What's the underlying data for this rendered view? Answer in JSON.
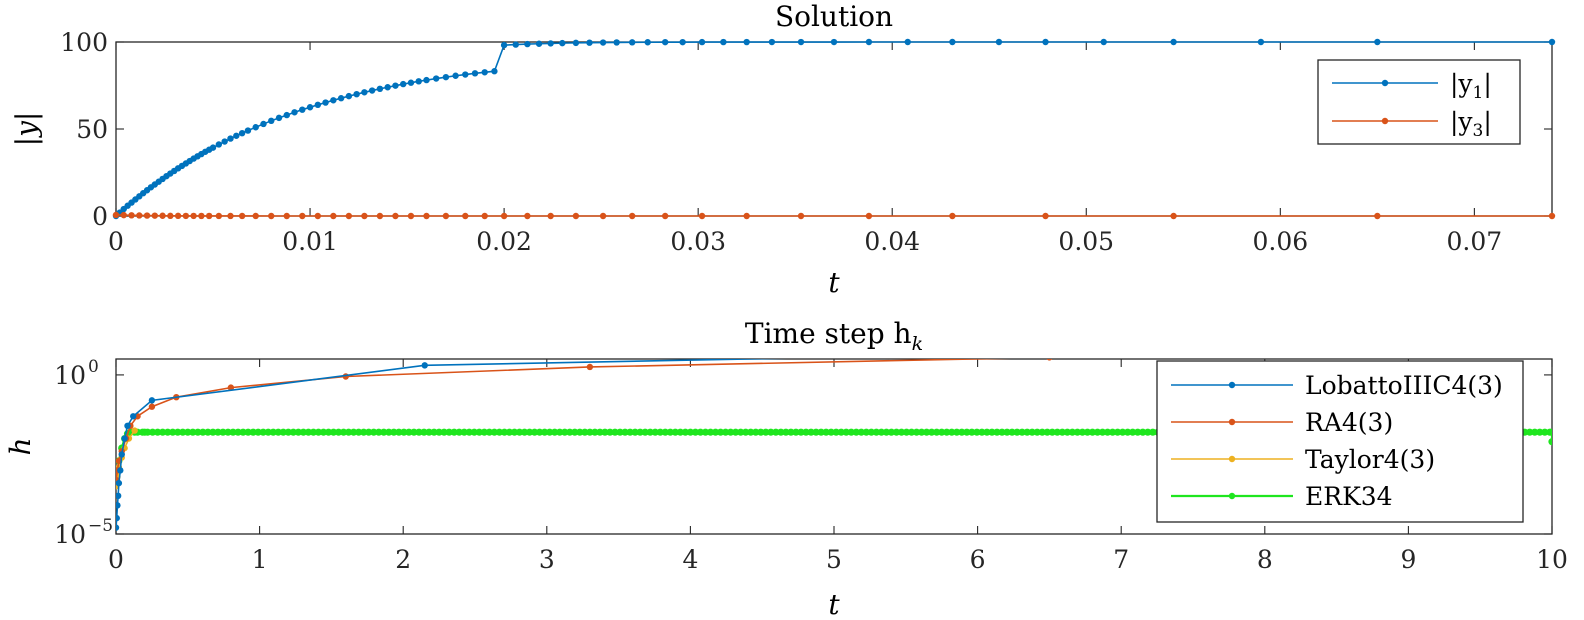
{
  "chart_data": [
    {
      "type": "line",
      "title": "Solution",
      "xlabel": "t",
      "ylabel": "|y|",
      "xlim": [
        0,
        0.074
      ],
      "ylim": [
        0,
        100
      ],
      "xticks": [
        0,
        0.01,
        0.02,
        0.03,
        0.04,
        0.05,
        0.06,
        0.07
      ],
      "xtick_labels": [
        "0",
        "0.01",
        "0.02",
        "0.03",
        "0.04",
        "0.05",
        "0.06",
        "0.07"
      ],
      "yticks": [
        0,
        50,
        100
      ],
      "ytick_labels": [
        "0",
        "50",
        "100"
      ],
      "grid": false,
      "legend_placement": "top-right",
      "series": [
        {
          "name": "|y1|",
          "label_main": "|y",
          "label_sub": "1",
          "color": "#0072BD",
          "x": [
            0,
            0.0002,
            0.0004,
            0.0006,
            0.0008,
            0.001,
            0.0012,
            0.0014,
            0.0016,
            0.0018,
            0.002,
            0.0022,
            0.0024,
            0.0026,
            0.0028,
            0.003,
            0.0032,
            0.0034,
            0.0036,
            0.0038,
            0.004,
            0.0042,
            0.0044,
            0.0046,
            0.0048,
            0.005,
            0.0053,
            0.0056,
            0.0059,
            0.0062,
            0.0065,
            0.0068,
            0.0072,
            0.0076,
            0.008,
            0.0084,
            0.0088,
            0.0092,
            0.0096,
            0.01,
            0.0104,
            0.0108,
            0.0112,
            0.0116,
            0.012,
            0.0124,
            0.0128,
            0.0132,
            0.0136,
            0.014,
            0.0144,
            0.0148,
            0.0152,
            0.0156,
            0.016,
            0.0165,
            0.017,
            0.0175,
            0.018,
            0.0185,
            0.019,
            0.0195,
            0.02,
            0.0206,
            0.0212,
            0.0218,
            0.0224,
            0.023,
            0.0237,
            0.0244,
            0.0251,
            0.0258,
            0.0266,
            0.0274,
            0.0283,
            0.0292,
            0.0302,
            0.0313,
            0.0325,
            0.0338,
            0.0353,
            0.037,
            0.0388,
            0.0408,
            0.0431,
            0.0455,
            0.0479,
            0.0509,
            0.0545,
            0.059,
            0.065,
            0.074
          ],
          "y": [
            0,
            2.0,
            4.0,
            5.9,
            7.7,
            9.5,
            11.3,
            13.1,
            14.8,
            16.5,
            18.1,
            19.7,
            21.3,
            22.9,
            24.4,
            25.9,
            27.4,
            28.8,
            30.2,
            31.6,
            33.0,
            34.3,
            35.6,
            36.9,
            38.1,
            39.3,
            41.1,
            42.8,
            44.5,
            46.1,
            47.6,
            49.1,
            51.0,
            52.9,
            54.7,
            56.4,
            58.0,
            59.6,
            61.1,
            62.5,
            63.9,
            65.2,
            66.5,
            67.7,
            68.9,
            70.0,
            71.1,
            72.1,
            73.1,
            74.0,
            74.9,
            75.8,
            76.6,
            77.4,
            78.1,
            79.0,
            79.8,
            80.6,
            81.3,
            82.0,
            82.6,
            83.2,
            98.2,
            98.5,
            98.8,
            99.0,
            99.2,
            99.35,
            99.5,
            99.6,
            99.7,
            99.75,
            99.8,
            99.85,
            99.9,
            99.92,
            99.95,
            99.96,
            99.97,
            99.98,
            99.99,
            99.99,
            100,
            100,
            100,
            100,
            100,
            100,
            100,
            100,
            100,
            100
          ]
        },
        {
          "name": "|y3|",
          "label_main": "|y",
          "label_sub": "3",
          "color": "#D95319",
          "x": [
            0,
            0.0004,
            0.0008,
            0.0012,
            0.0016,
            0.002,
            0.0024,
            0.0028,
            0.0032,
            0.0036,
            0.004,
            0.0044,
            0.0048,
            0.0053,
            0.0059,
            0.0065,
            0.0072,
            0.008,
            0.0088,
            0.0096,
            0.0104,
            0.0112,
            0.012,
            0.0128,
            0.0136,
            0.0144,
            0.0152,
            0.016,
            0.017,
            0.018,
            0.019,
            0.02,
            0.0212,
            0.0224,
            0.0237,
            0.0251,
            0.0266,
            0.0283,
            0.0302,
            0.0325,
            0.0353,
            0.0388,
            0.0431,
            0.0479,
            0.0545,
            0.065,
            0.074
          ],
          "y": [
            0.6,
            0.5,
            0.4,
            0.3,
            0.25,
            0.2,
            0.15,
            0.1,
            0.08,
            0.06,
            0.05,
            0.04,
            0.03,
            0.02,
            0.02,
            0.01,
            0.01,
            0,
            0,
            0,
            0,
            0,
            0,
            0,
            0,
            0,
            0,
            0,
            0,
            0,
            0,
            0,
            0,
            0,
            0,
            0,
            0,
            0,
            0,
            0,
            0,
            0,
            0,
            0,
            0,
            0,
            0
          ]
        }
      ]
    },
    {
      "type": "line",
      "title": "Time step h",
      "title_sub": "k",
      "xlabel": "t",
      "ylabel": "h",
      "xlim": [
        0,
        10
      ],
      "ylim_log10": [
        -5,
        0.5
      ],
      "yscale": "log",
      "xticks": [
        0,
        1,
        2,
        3,
        4,
        5,
        6,
        7,
        8,
        9,
        10
      ],
      "xtick_labels": [
        "0",
        "1",
        "2",
        "3",
        "4",
        "5",
        "6",
        "7",
        "8",
        "9",
        "10"
      ],
      "yticks_log10": [
        -5,
        0
      ],
      "ytick_labels": [
        {
          "base": "10",
          "exp": "−5"
        },
        {
          "base": "10",
          "exp": "0"
        }
      ],
      "grid": false,
      "legend_placement": "top-right",
      "series": [
        {
          "name": "LobattoIIIC4(3)",
          "color": "#0072BD",
          "x": [
            0,
            0.005,
            0.01,
            0.015,
            0.02,
            0.03,
            0.04,
            0.06,
            0.08,
            0.12,
            0.25,
            2.15,
            10
          ],
          "log10_y": [
            -4.8,
            -4.5,
            -4.1,
            -3.8,
            -3.4,
            -3.0,
            -2.5,
            -2.0,
            -1.6,
            -1.3,
            -0.8,
            0.3,
            1.0
          ]
        },
        {
          "name": "RA4(3)",
          "color": "#D95319",
          "x": [
            0,
            0.01,
            0.02,
            0.04,
            0.07,
            0.1,
            0.15,
            0.25,
            0.42,
            0.8,
            1.6,
            3.3,
            6.5,
            10
          ],
          "log10_y": [
            -3.3,
            -3.0,
            -2.7,
            -2.4,
            -2.0,
            -1.6,
            -1.3,
            -1.0,
            -0.7,
            -0.4,
            -0.05,
            0.25,
            0.55,
            0.6
          ]
        },
        {
          "name": "Taylor4(3)",
          "color": "#EDB120",
          "x": [
            0,
            0.01,
            0.02,
            0.04,
            0.06,
            0.09,
            0.13
          ],
          "log10_y": [
            -3.5,
            -3.2,
            -2.9,
            -2.6,
            -2.3,
            -2.0,
            -1.75
          ]
        },
        {
          "name": "ERK34",
          "color": "#1EE61E",
          "x": [
            0,
            0.01,
            0.02,
            0.04,
            0.06,
            0.08,
            0.1,
            0.13,
            0.2,
            10,
            10
          ],
          "log10_y": [
            -3.2,
            -3.0,
            -2.7,
            -2.3,
            -2.0,
            -1.85,
            -1.8,
            -1.8,
            -1.8,
            -1.8,
            -2.1
          ]
        }
      ]
    }
  ]
}
